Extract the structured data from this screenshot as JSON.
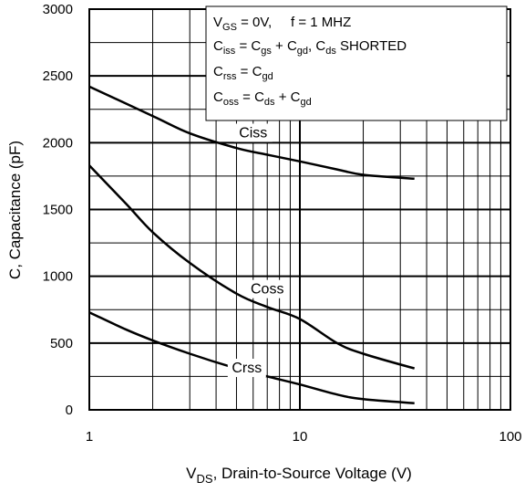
{
  "chart_data": {
    "type": "line",
    "x_scale": "log",
    "xlim": [
      1,
      100
    ],
    "ylim": [
      0,
      3000
    ],
    "x_ticks": [
      "1",
      "10",
      "100"
    ],
    "y_ticks": [
      "0",
      "500",
      "1000",
      "1500",
      "2000",
      "2500",
      "3000"
    ],
    "xlabel": {
      "main": "V",
      "sub": "DS",
      "rest": ", Drain-to-Source Voltage (V)"
    },
    "ylabel": "C, Capacitance (pF)",
    "grid": true,
    "series": [
      {
        "name": "Ciss",
        "x": [
          1,
          2,
          3,
          5,
          7,
          10,
          15,
          20,
          35
        ],
        "y": [
          2420,
          2200,
          2070,
          1960,
          1910,
          1860,
          1800,
          1760,
          1730
        ]
      },
      {
        "name": "Coss",
        "x": [
          1,
          1.5,
          2,
          3,
          5,
          7,
          10,
          15,
          20,
          35
        ],
        "y": [
          1830,
          1540,
          1330,
          1100,
          870,
          770,
          680,
          500,
          420,
          310
        ]
      },
      {
        "name": "Crss",
        "x": [
          1,
          1.5,
          2,
          3,
          5,
          7,
          10,
          15,
          20,
          35
        ],
        "y": [
          730,
          600,
          520,
          420,
          310,
          250,
          190,
          115,
          80,
          50
        ]
      }
    ],
    "annotations": {
      "line1": {
        "a_main": "V",
        "a_sub": "GS",
        "a_rest": " = 0V,     f = 1 MHZ"
      },
      "line2": {
        "p1": "C",
        "s1": "iss",
        "p2": " = C",
        "s2": "gs",
        "p3": " + C",
        "s3": "gd",
        "p4": ", C",
        "s4": "ds",
        "p5": " SHORTED"
      },
      "line3": {
        "p1": "C",
        "s1": "rss",
        "p2": "  = C",
        "s2": "gd"
      },
      "line4": {
        "p1": "C",
        "s1": "oss",
        "p2": "  = C",
        "s2": "ds",
        "p3": " + C",
        "s3": "gd"
      }
    }
  }
}
